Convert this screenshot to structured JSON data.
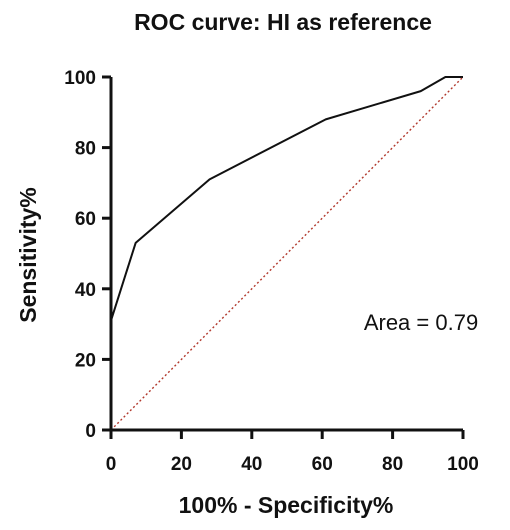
{
  "chart_data": {
    "type": "line",
    "title": "ROC curve: HI as reference",
    "xlabel": "100% - Specificity%",
    "ylabel": "Sensitivity%",
    "xlim": [
      0,
      100
    ],
    "ylim": [
      0,
      100
    ],
    "xticks": [
      0,
      20,
      40,
      60,
      80,
      100
    ],
    "yticks": [
      0,
      20,
      40,
      60,
      80,
      100
    ],
    "grid": false,
    "annotation": "Area = 0.79",
    "series": [
      {
        "style": "solid",
        "color": "#111111",
        "x": [
          0,
          0,
          7,
          28,
          61,
          88,
          95,
          100
        ],
        "y": [
          0,
          31,
          53,
          71,
          88,
          96,
          100,
          100
        ]
      },
      {
        "style": "dotted",
        "color": "#b23a2e",
        "x": [
          0,
          100
        ],
        "y": [
          0,
          100
        ]
      }
    ]
  }
}
